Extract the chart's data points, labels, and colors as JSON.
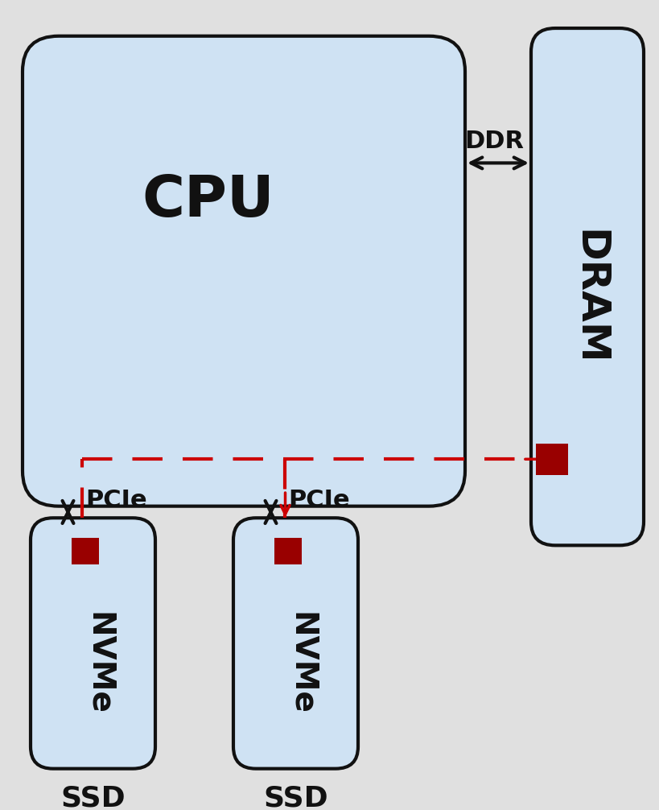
{
  "bg_color": "#e0e0e0",
  "box_fill": "#cfe2f3",
  "box_edge": "#111111",
  "red_fill": "#990000",
  "red_dash": "#cc0000",
  "black": "#111111",
  "white": "#ffffff",
  "cpu_label": "CPU",
  "dram_label": "DRAM",
  "nvme_label": "NVMe",
  "ssd_label": "SSD",
  "ddr_label": "DDR",
  "pcie_label": "PCIe"
}
